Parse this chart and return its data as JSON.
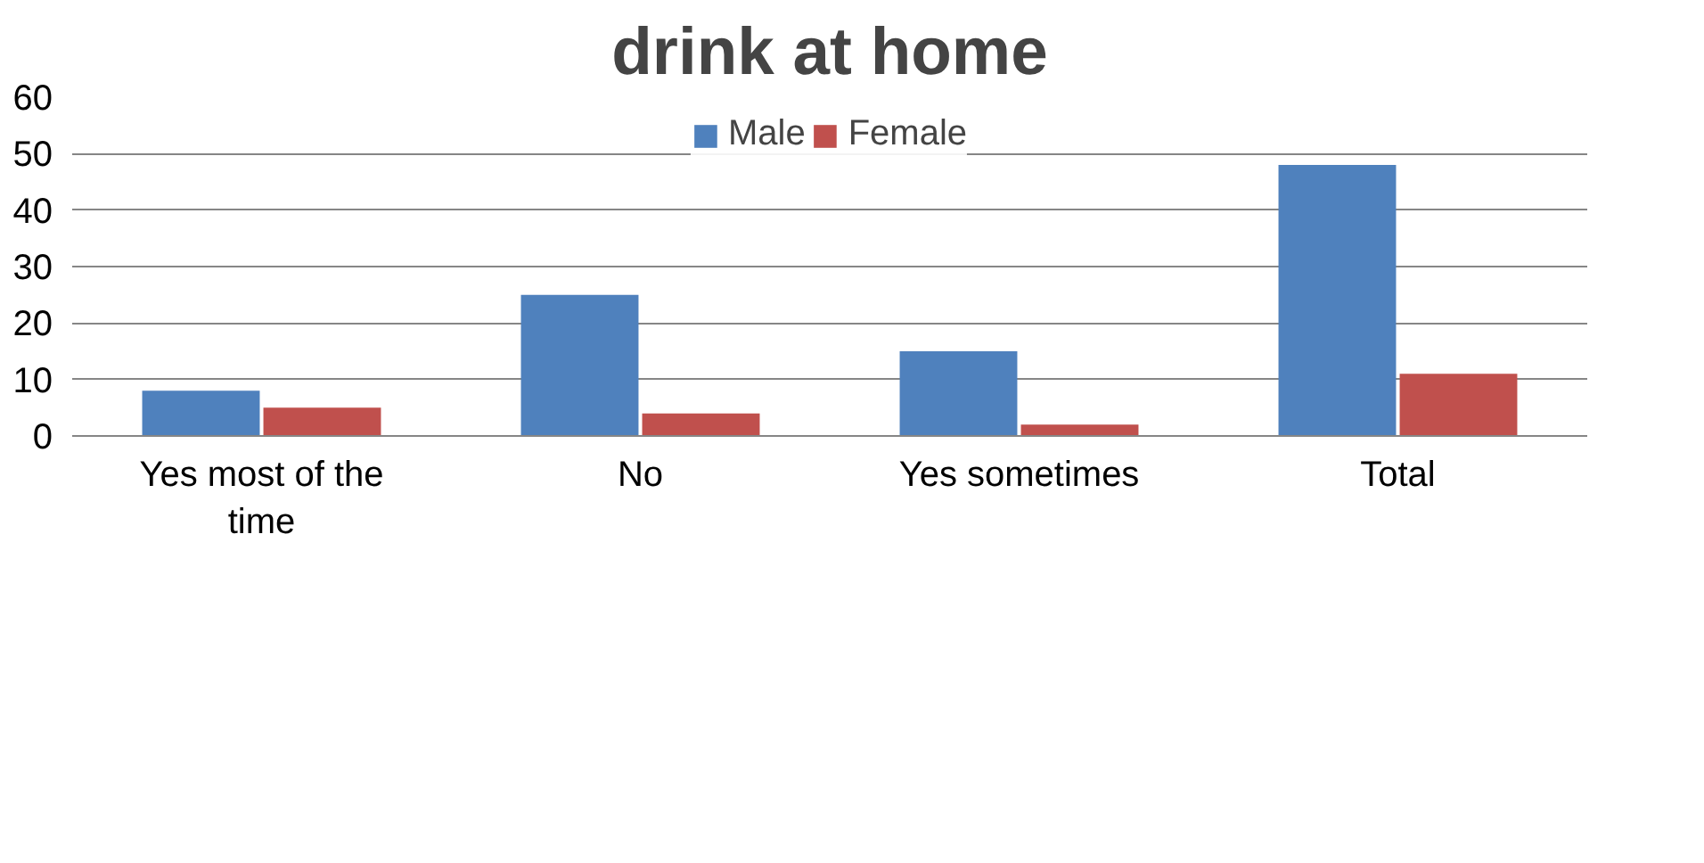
{
  "chart_data": {
    "type": "bar",
    "title": "drink at home",
    "categories": [
      "Yes most of the time",
      "No",
      "Yes sometimes",
      "Total"
    ],
    "series": [
      {
        "name": "Male",
        "color": "#4f81bd",
        "values": [
          8,
          25,
          15,
          48
        ]
      },
      {
        "name": "Female",
        "color": "#c0504d",
        "values": [
          5,
          4,
          2,
          11
        ]
      }
    ],
    "ylim": [
      0,
      60
    ],
    "yticks": [
      0,
      10,
      20,
      30,
      40,
      50,
      60
    ],
    "grid": "y",
    "legend": "top"
  }
}
